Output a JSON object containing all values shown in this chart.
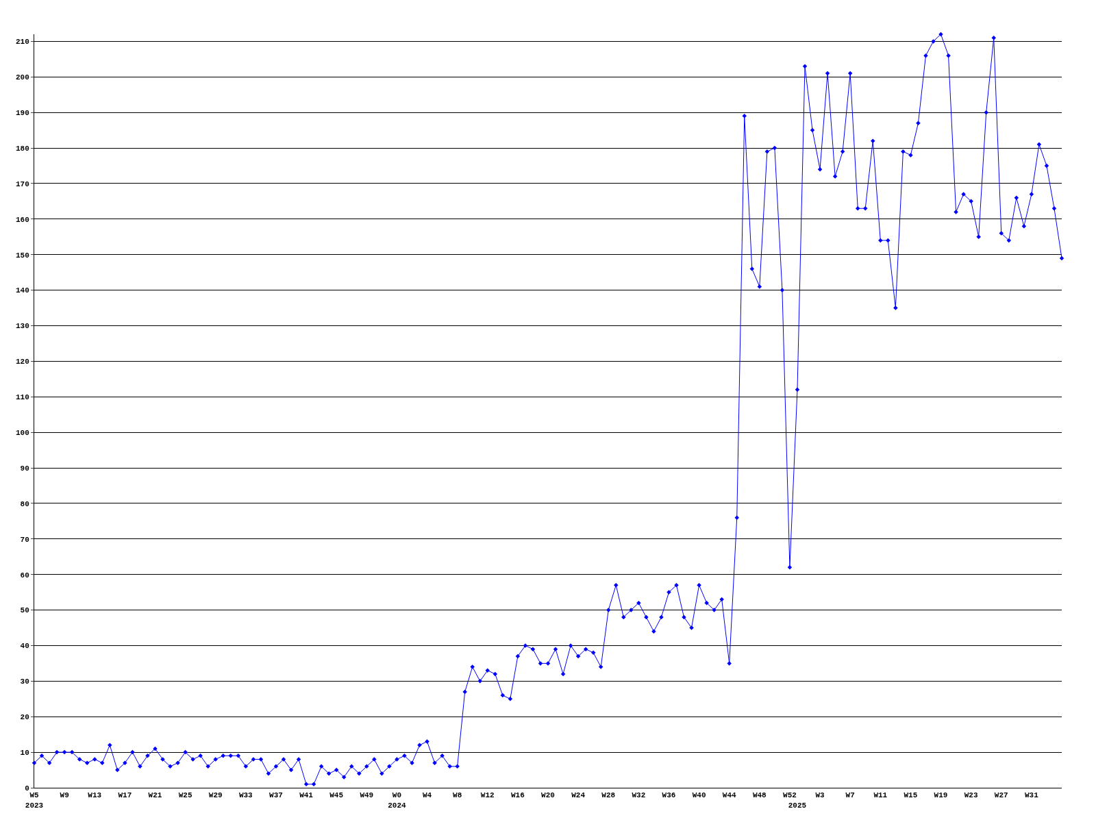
{
  "chart_data": {
    "type": "line",
    "categories": [
      "W5\n2023",
      null,
      null,
      null,
      "W9",
      null,
      null,
      null,
      "W13",
      null,
      null,
      null,
      "W17",
      null,
      null,
      null,
      "W21",
      null,
      null,
      null,
      "W25",
      null,
      null,
      null,
      "W29",
      null,
      null,
      null,
      "W33",
      null,
      null,
      null,
      "W37",
      null,
      null,
      null,
      "W41",
      null,
      null,
      null,
      "W45",
      null,
      null,
      null,
      "W49",
      null,
      null,
      null,
      "W0\n2024",
      null,
      null,
      null,
      "W4",
      null,
      null,
      null,
      "W8",
      null,
      null,
      null,
      "W12",
      null,
      null,
      null,
      "W16",
      null,
      null,
      null,
      "W20",
      null,
      null,
      null,
      "W24",
      null,
      null,
      null,
      "W28",
      null,
      null,
      null,
      "W32",
      null,
      null,
      null,
      "W36",
      null,
      null,
      null,
      "W40",
      null,
      null,
      null,
      "W44",
      null,
      null,
      null,
      "W48",
      null,
      null,
      null,
      "W52",
      "\n2025",
      null,
      null,
      "W3",
      null,
      null,
      null,
      "W7",
      null,
      null,
      null,
      "W11",
      null,
      null,
      null,
      "W15",
      null,
      null,
      null,
      "W19",
      null,
      null,
      null,
      "W23",
      null,
      null,
      null,
      "W27",
      null,
      null,
      null,
      "W31",
      null,
      null,
      null,
      null
    ],
    "series": [
      {
        "color": "#0000ff",
        "values": [
          7,
          9,
          7,
          10,
          10,
          10,
          8,
          7,
          8,
          7,
          12,
          5,
          7,
          10,
          6,
          9,
          11,
          8,
          6,
          7,
          10,
          8,
          9,
          6,
          8,
          9,
          9,
          9,
          6,
          8,
          8,
          4,
          6,
          8,
          5,
          8,
          1,
          1,
          6,
          4,
          5,
          3,
          6,
          4,
          6,
          8,
          4,
          6,
          8,
          9,
          7,
          12,
          13,
          7,
          9,
          6,
          6,
          27,
          34,
          30,
          33,
          32,
          26,
          25,
          37,
          40,
          39,
          35,
          35,
          39,
          32,
          40,
          37,
          39,
          38,
          34,
          50,
          57,
          48,
          50,
          52,
          48,
          44,
          48,
          55,
          57,
          48,
          45,
          57,
          52,
          50,
          53,
          35,
          76,
          189,
          146,
          141,
          179,
          180,
          140,
          62,
          112,
          203,
          185,
          174,
          201,
          172,
          179,
          201,
          163,
          163,
          182,
          154,
          154,
          135,
          179,
          178,
          187,
          206,
          210,
          212,
          206,
          162,
          167,
          165,
          155,
          190,
          211,
          156,
          154,
          166,
          158,
          167,
          181,
          175,
          163,
          149
        ]
      }
    ],
    "ylim": [
      0,
      212
    ],
    "yticks": [
      0,
      10,
      20,
      30,
      40,
      50,
      60,
      70,
      80,
      90,
      100,
      110,
      120,
      130,
      140,
      150,
      160,
      170,
      180,
      190,
      200,
      210
    ],
    "grid": "y",
    "marker": "diamond",
    "line_style": "solid",
    "legend": false
  }
}
